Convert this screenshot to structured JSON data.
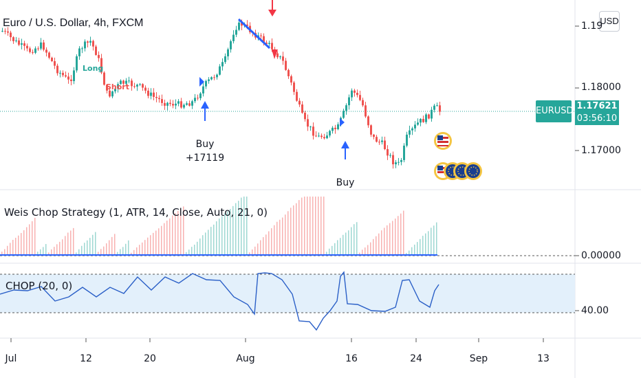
{
  "chart": {
    "title": "Euro / U.S. Dollar, 4h, FXCM",
    "currency_button": "USD",
    "symbol_badge": "EURUSD",
    "last_price": "1.17621",
    "countdown": "03:56:10",
    "price_axis": [
      "1.19",
      "1.18000",
      "1.17000"
    ],
    "signals": {
      "buy1": {
        "label": "Buy",
        "profit": "+17119"
      },
      "buy2": {
        "label": "Buy"
      },
      "long": "Long",
      "short": "Short"
    }
  },
  "indicator1": {
    "title": "Weis Chop Strategy (1, ATR, 14, Close, Auto, 21, 0)",
    "axis_value": "0.00000"
  },
  "indicator2": {
    "title": "CHOP (20, 0)",
    "axis_value": "40.00"
  },
  "time_axis": [
    "Jul",
    "12",
    "20",
    "Aug",
    "16",
    "24",
    "Sep",
    "13"
  ],
  "colors": {
    "up": "#26a69a",
    "down": "#ef5350",
    "buy_arrow": "#2962ff",
    "sell_arrow": "#f23645",
    "chop_line": "#2a5fc7",
    "chop_band": "#e3f0fb"
  },
  "icons": [
    "us-flag-icon",
    "eu-flag-icon"
  ]
}
